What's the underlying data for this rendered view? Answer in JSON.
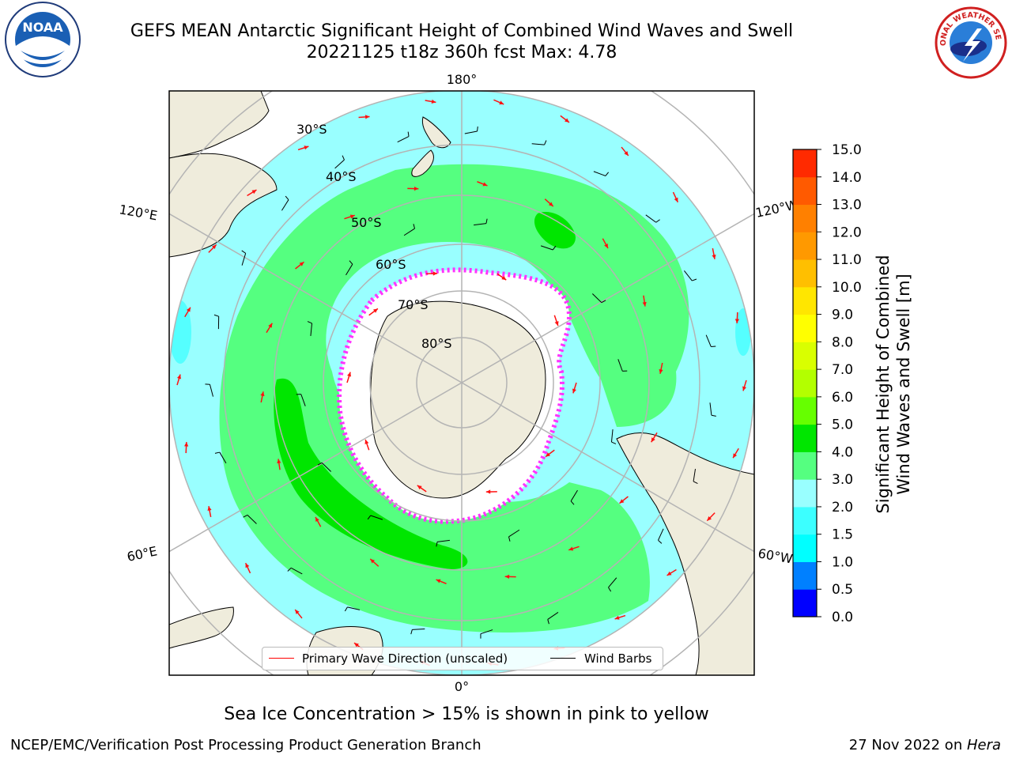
{
  "title_line1": "GEFS MEAN Antarctic Significant Height of Combined Wind Waves and Swell",
  "title_line2": "20221125 t18z 360h fcst   Max: 4.78",
  "logos": {
    "left": {
      "icon": "noaa-logo-icon",
      "text": "NOAA"
    },
    "right": {
      "icon": "national-weather-service-logo-icon",
      "text": "NATIONAL WEATHER SERVICE"
    }
  },
  "map": {
    "projection": "south-polar-stereographic",
    "lat_labels": [
      "30°S",
      "40°S",
      "50°S",
      "60°S",
      "70°S",
      "80°S"
    ],
    "lon_labels": {
      "top": "180°",
      "bottom": "0°",
      "upper_left": "120°E",
      "lower_left": "60°E",
      "upper_right": "120°W",
      "lower_right": "60°W"
    },
    "colors": {
      "land": "#efecdc",
      "ice": "#ffffff",
      "wave_1_5_2": "#55ffff",
      "wave_2_3": "#99ffff",
      "wave_3_4": "#55ff80",
      "wave_4_5": "#00e600",
      "arrow": "#ff1111",
      "barb": "#000000",
      "grid": "#b4b4b4"
    }
  },
  "legend": {
    "wave_label": "Primary Wave Direction (unscaled)",
    "wind_label": "Wind Barbs",
    "wave_color": "#ff0000",
    "wind_color": "#000000"
  },
  "colorbar": {
    "label_line1": "Significant Height of Combined",
    "label_line2": "Wind Waves and Swell [m]",
    "ticks": [
      "0.0",
      "0.5",
      "1.0",
      "1.5",
      "2.0",
      "3.0",
      "4.0",
      "5.0",
      "6.0",
      "7.0",
      "8.0",
      "9.0",
      "10.0",
      "11.0",
      "12.0",
      "13.0",
      "14.0",
      "15.0"
    ],
    "colors": [
      "#0000ff",
      "#0080ff",
      "#00ffff",
      "#3cffff",
      "#99ffff",
      "#55ff80",
      "#00e600",
      "#66ff00",
      "#b3ff00",
      "#d9ff00",
      "#ffff00",
      "#ffe600",
      "#ffbf00",
      "#ff9900",
      "#ff8000",
      "#ff5a00",
      "#ff2a00"
    ]
  },
  "footer": {
    "ice_note": "Sea Ice Concentration > 15% is shown in pink to yellow",
    "credit": "NCEP/EMC/Verification Post Processing Product Generation Branch",
    "date": "27 Nov 2022 on ",
    "machine": "Hera"
  }
}
